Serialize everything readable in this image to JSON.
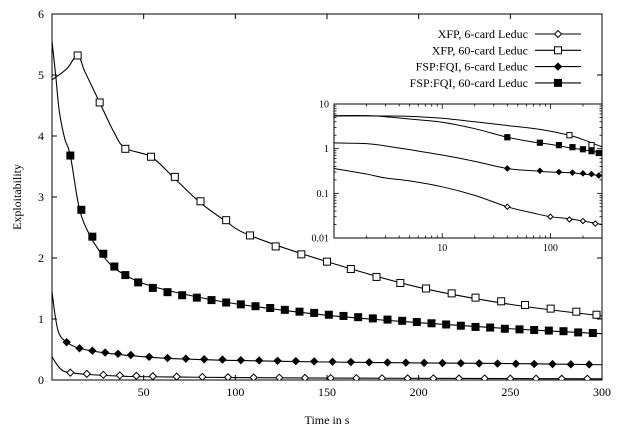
{
  "chart_data": [
    {
      "type": "line",
      "xlabel": "Time in s",
      "ylabel": "Exploitability",
      "xlim": [
        0,
        300
      ],
      "ylim": [
        0,
        6
      ],
      "xticks": [
        50,
        100,
        150,
        200,
        250,
        300
      ],
      "yticks": [
        0,
        1,
        2,
        3,
        4,
        5,
        6
      ],
      "legend_position": "top-right",
      "series": [
        {
          "name": "XFP, 6-card Leduc",
          "marker": "open-diamond",
          "curve": [
            [
              0,
              0.38
            ],
            [
              3,
              0.24
            ],
            [
              6,
              0.15
            ],
            [
              10,
              0.12
            ],
            [
              20,
              0.09
            ],
            [
              40,
              0.06
            ],
            [
              70,
              0.048
            ],
            [
              100,
              0.04
            ],
            [
              150,
              0.032
            ],
            [
              200,
              0.027
            ],
            [
              250,
              0.023
            ],
            [
              300,
              0.02
            ]
          ],
          "markers_x": [
            10,
            19,
            28,
            37,
            46,
            55,
            68,
            82,
            96,
            110,
            124,
            138,
            152,
            166,
            180,
            194,
            208,
            222,
            236,
            250,
            264,
            278,
            292
          ],
          "markers_y": [
            0.12,
            0.1,
            0.085,
            0.075,
            0.068,
            0.062,
            0.056,
            0.05,
            0.045,
            0.041,
            0.038,
            0.035,
            0.032,
            0.03,
            0.028,
            0.027,
            0.026,
            0.025,
            0.024,
            0.023,
            0.022,
            0.021,
            0.02
          ]
        },
        {
          "name": "XFP, 60-card Leduc",
          "marker": "open-square",
          "curve": [
            [
              0,
              4.92
            ],
            [
              8,
              5.1
            ],
            [
              14,
              5.32
            ],
            [
              18,
              5.05
            ],
            [
              26,
              4.55
            ],
            [
              34,
              4.05
            ],
            [
              40,
              3.8
            ],
            [
              54,
              3.66
            ],
            [
              66,
              3.33
            ],
            [
              80,
              2.93
            ],
            [
              94,
              2.62
            ],
            [
              108,
              2.37
            ],
            [
              150,
              1.94
            ],
            [
              200,
              1.52
            ],
            [
              250,
              1.24
            ],
            [
              300,
              1.05
            ]
          ],
          "markers_x": [
            14,
            26,
            40,
            54,
            67,
            81,
            95,
            108,
            122,
            136,
            150,
            163,
            177,
            190,
            204,
            218,
            231,
            245,
            258,
            272,
            286,
            297
          ],
          "markers_y": [
            5.32,
            4.55,
            3.79,
            3.66,
            3.33,
            2.93,
            2.62,
            2.37,
            2.19,
            2.06,
            1.94,
            1.82,
            1.69,
            1.59,
            1.5,
            1.42,
            1.35,
            1.29,
            1.23,
            1.17,
            1.12,
            1.07
          ]
        },
        {
          "name": "FSP:FQI, 6-card Leduc",
          "marker": "filled-diamond",
          "curve": [
            [
              0,
              1.45
            ],
            [
              2,
              1.0
            ],
            [
              4,
              0.75
            ],
            [
              8,
              0.62
            ],
            [
              15,
              0.52
            ],
            [
              30,
              0.44
            ],
            [
              60,
              0.36
            ],
            [
              100,
              0.32
            ],
            [
              150,
              0.295
            ],
            [
              200,
              0.28
            ],
            [
              250,
              0.27
            ],
            [
              300,
              0.25
            ]
          ],
          "markers_x": [
            8,
            15,
            22,
            29,
            36,
            43,
            53,
            63,
            73,
            83,
            93,
            103,
            113,
            123,
            133,
            143,
            153,
            163,
            173,
            183,
            193,
            203,
            213,
            223,
            233,
            243,
            253,
            263,
            273,
            283,
            293
          ],
          "markers_y": [
            0.62,
            0.52,
            0.48,
            0.45,
            0.43,
            0.41,
            0.38,
            0.36,
            0.35,
            0.34,
            0.335,
            0.325,
            0.32,
            0.315,
            0.31,
            0.305,
            0.3,
            0.295,
            0.29,
            0.287,
            0.284,
            0.281,
            0.278,
            0.275,
            0.272,
            0.269,
            0.266,
            0.263,
            0.26,
            0.257,
            0.255
          ]
        },
        {
          "name": "FSP:FQI, 60-card Leduc",
          "marker": "filled-square",
          "curve": [
            [
              0,
              5.55
            ],
            [
              2,
              5.0
            ],
            [
              4,
              4.4
            ],
            [
              7,
              3.95
            ],
            [
              10,
              3.68
            ],
            [
              15,
              2.8
            ],
            [
              21,
              2.35
            ],
            [
              27,
              2.07
            ],
            [
              33,
              1.86
            ],
            [
              40,
              1.72
            ],
            [
              50,
              1.58
            ],
            [
              70,
              1.42
            ],
            [
              100,
              1.25
            ],
            [
              150,
              1.06
            ],
            [
              200,
              0.94
            ],
            [
              250,
              0.84
            ],
            [
              300,
              0.76
            ]
          ],
          "markers_x": [
            10,
            16,
            22,
            28,
            34,
            40,
            47,
            55,
            63,
            71,
            79,
            87,
            95,
            103,
            111,
            119,
            127,
            135,
            143,
            151,
            159,
            167,
            175,
            183,
            191,
            199,
            207,
            215,
            223,
            231,
            239,
            247,
            255,
            263,
            271,
            279,
            287,
            295
          ],
          "markers_y": [
            3.68,
            2.79,
            2.35,
            2.07,
            1.86,
            1.72,
            1.6,
            1.51,
            1.44,
            1.39,
            1.35,
            1.31,
            1.27,
            1.24,
            1.21,
            1.18,
            1.15,
            1.12,
            1.1,
            1.07,
            1.05,
            1.03,
            1.01,
            0.99,
            0.97,
            0.95,
            0.93,
            0.91,
            0.89,
            0.87,
            0.86,
            0.84,
            0.83,
            0.82,
            0.81,
            0.8,
            0.78,
            0.77
          ]
        }
      ]
    },
    {
      "type": "line",
      "xscale": "log",
      "yscale": "log",
      "xlim": [
        1,
        300
      ],
      "ylim": [
        0.01,
        10
      ],
      "xticks": [
        10,
        100
      ],
      "yticks": [
        0.01,
        0.1,
        1,
        10
      ],
      "xtick_labels": [
        "10",
        "100"
      ],
      "ytick_labels": [
        "0.01",
        "0.1",
        "1",
        "10"
      ],
      "series": [
        {
          "name": "XFP, 6-card Leduc",
          "marker": "open-diamond",
          "curve": [
            [
              1,
              0.36
            ],
            [
              2,
              0.27
            ],
            [
              3,
              0.22
            ],
            [
              5,
              0.19
            ],
            [
              10,
              0.14
            ],
            [
              20,
              0.09
            ],
            [
              40,
              0.05
            ],
            [
              70,
              0.036
            ],
            [
              100,
              0.03
            ],
            [
              150,
              0.027
            ],
            [
              200,
              0.024
            ],
            [
              300,
              0.02
            ]
          ],
          "markers_x": [
            40,
            100,
            150,
            200,
            260
          ],
          "markers_y": [
            0.05,
            0.03,
            0.026,
            0.024,
            0.021
          ]
        },
        {
          "name": "XFP, 60-card Leduc",
          "marker": "open-square",
          "curve": [
            [
              1,
              5.4
            ],
            [
              3,
              5.4
            ],
            [
              5,
              5.3
            ],
            [
              10,
              4.8
            ],
            [
              20,
              4.0
            ],
            [
              40,
              3.3
            ],
            [
              80,
              2.7
            ],
            [
              150,
              2.0
            ],
            [
              200,
              1.6
            ],
            [
              250,
              1.3
            ],
            [
              300,
              1.1
            ]
          ],
          "markers_x": [
            150,
            240
          ],
          "markers_y": [
            2.0,
            1.2
          ]
        },
        {
          "name": "FSP:FQI, 6-card Leduc",
          "marker": "filled-diamond",
          "curve": [
            [
              1,
              1.35
            ],
            [
              2,
              1.3
            ],
            [
              3,
              1.15
            ],
            [
              5,
              0.95
            ],
            [
              10,
              0.72
            ],
            [
              20,
              0.52
            ],
            [
              40,
              0.36
            ],
            [
              70,
              0.32
            ],
            [
              100,
              0.3
            ],
            [
              150,
              0.29
            ],
            [
              200,
              0.27
            ],
            [
              300,
              0.25
            ]
          ],
          "markers_x": [
            40,
            80,
            120,
            160,
            200,
            240,
            280
          ],
          "markers_y": [
            0.36,
            0.32,
            0.3,
            0.29,
            0.28,
            0.27,
            0.25
          ]
        },
        {
          "name": "FSP:FQI, 60-card Leduc",
          "marker": "filled-square",
          "curve": [
            [
              1,
              5.5
            ],
            [
              2,
              5.5
            ],
            [
              3,
              5.2
            ],
            [
              5,
              4.6
            ],
            [
              10,
              3.9
            ],
            [
              20,
              2.8
            ],
            [
              40,
              1.8
            ],
            [
              70,
              1.4
            ],
            [
              100,
              1.25
            ],
            [
              150,
              1.05
            ],
            [
              200,
              0.95
            ],
            [
              300,
              0.8
            ]
          ],
          "markers_x": [
            40,
            80,
            120,
            160,
            200,
            240,
            280
          ],
          "markers_y": [
            1.8,
            1.36,
            1.2,
            1.08,
            0.97,
            0.88,
            0.8
          ]
        }
      ]
    }
  ]
}
